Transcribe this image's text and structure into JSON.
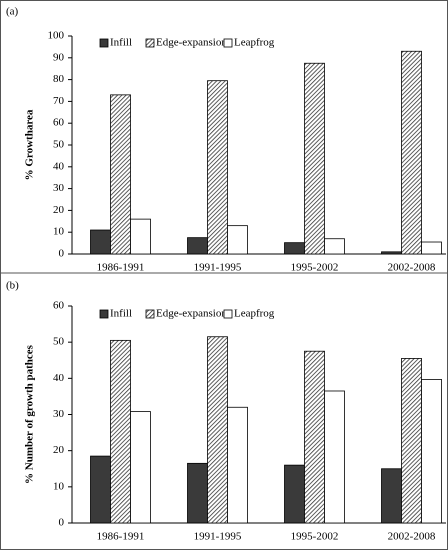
{
  "chart_data": [
    {
      "type": "bar",
      "panel_label": "(a)",
      "y_label": "% Growtharea",
      "categories": [
        "1986-1991",
        "1991-1995",
        "1995-2002",
        "2002-2008"
      ],
      "series": [
        {
          "name": "Infill",
          "color": "#3a3a3a",
          "hatch": false,
          "values": [
            11,
            7.5,
            5.2,
            1
          ]
        },
        {
          "name": "Edge-expansion",
          "color": "#444444",
          "hatch": true,
          "values": [
            73,
            79.5,
            87.5,
            93
          ]
        },
        {
          "name": "Leapfrog",
          "color": "#ffffff",
          "hatch": false,
          "values": [
            16,
            13,
            7,
            5.5
          ]
        }
      ],
      "ylim": [
        0,
        100
      ],
      "yticks": [
        0,
        10,
        20,
        30,
        40,
        50,
        60,
        70,
        80,
        90,
        100
      ]
    },
    {
      "type": "bar",
      "panel_label": "(b)",
      "y_label": "% Number of growth pathces",
      "categories": [
        "1986-1991",
        "1991-1995",
        "1995-2002",
        "2002-2008"
      ],
      "series": [
        {
          "name": "Infill",
          "color": "#3a3a3a",
          "hatch": false,
          "values": [
            18.5,
            16.5,
            16,
            15
          ]
        },
        {
          "name": "Edge-expansion",
          "color": "#444444",
          "hatch": true,
          "values": [
            50.5,
            51.5,
            47.5,
            45.5
          ]
        },
        {
          "name": "Leapfrog",
          "color": "#ffffff",
          "hatch": false,
          "values": [
            30.8,
            32,
            36.5,
            39.7
          ]
        }
      ],
      "ylim": [
        0,
        60
      ],
      "yticks": [
        0,
        10,
        20,
        30,
        40,
        50,
        60
      ]
    }
  ]
}
